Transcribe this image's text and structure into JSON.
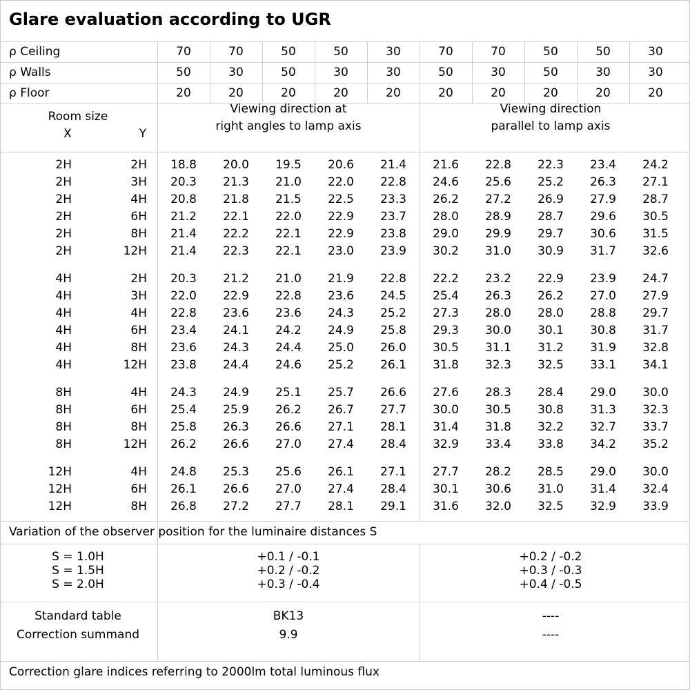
{
  "title": "Glare evaluation according to UGR",
  "reflectances": [
    {
      "label": "ρ Ceiling",
      "values": [
        "70",
        "70",
        "50",
        "50",
        "30",
        "70",
        "70",
        "50",
        "50",
        "30"
      ]
    },
    {
      "label": "ρ Walls",
      "values": [
        "50",
        "30",
        "50",
        "30",
        "30",
        "50",
        "30",
        "50",
        "30",
        "30"
      ]
    },
    {
      "label": "ρ Floor",
      "values": [
        "20",
        "20",
        "20",
        "20",
        "20",
        "20",
        "20",
        "20",
        "20",
        "20"
      ]
    }
  ],
  "room_size": {
    "label": "Room size",
    "x": "X",
    "y": "Y"
  },
  "direction_right": [
    "Viewing direction at",
    "right angles to lamp axis"
  ],
  "direction_parallel": [
    "Viewing direction",
    "parallel to lamp axis"
  ],
  "groups": [
    {
      "rows": [
        {
          "x": "2H",
          "y": "2H",
          "v": [
            "18.8",
            "20.0",
            "19.5",
            "20.6",
            "21.4",
            "21.6",
            "22.8",
            "22.3",
            "23.4",
            "24.2"
          ]
        },
        {
          "x": "2H",
          "y": "3H",
          "v": [
            "20.3",
            "21.3",
            "21.0",
            "22.0",
            "22.8",
            "24.6",
            "25.6",
            "25.2",
            "26.3",
            "27.1"
          ]
        },
        {
          "x": "2H",
          "y": "4H",
          "v": [
            "20.8",
            "21.8",
            "21.5",
            "22.5",
            "23.3",
            "26.2",
            "27.2",
            "26.9",
            "27.9",
            "28.7"
          ]
        },
        {
          "x": "2H",
          "y": "6H",
          "v": [
            "21.2",
            "22.1",
            "22.0",
            "22.9",
            "23.7",
            "28.0",
            "28.9",
            "28.7",
            "29.6",
            "30.5"
          ]
        },
        {
          "x": "2H",
          "y": "8H",
          "v": [
            "21.4",
            "22.2",
            "22.1",
            "22.9",
            "23.8",
            "29.0",
            "29.9",
            "29.7",
            "30.6",
            "31.5"
          ]
        },
        {
          "x": "2H",
          "y": "12H",
          "v": [
            "21.4",
            "22.3",
            "22.1",
            "23.0",
            "23.9",
            "30.2",
            "31.0",
            "30.9",
            "31.7",
            "32.6"
          ]
        }
      ]
    },
    {
      "rows": [
        {
          "x": "4H",
          "y": "2H",
          "v": [
            "20.3",
            "21.2",
            "21.0",
            "21.9",
            "22.8",
            "22.2",
            "23.2",
            "22.9",
            "23.9",
            "24.7"
          ]
        },
        {
          "x": "4H",
          "y": "3H",
          "v": [
            "22.0",
            "22.9",
            "22.8",
            "23.6",
            "24.5",
            "25.4",
            "26.3",
            "26.2",
            "27.0",
            "27.9"
          ]
        },
        {
          "x": "4H",
          "y": "4H",
          "v": [
            "22.8",
            "23.6",
            "23.6",
            "24.3",
            "25.2",
            "27.3",
            "28.0",
            "28.0",
            "28.8",
            "29.7"
          ]
        },
        {
          "x": "4H",
          "y": "6H",
          "v": [
            "23.4",
            "24.1",
            "24.2",
            "24.9",
            "25.8",
            "29.3",
            "30.0",
            "30.1",
            "30.8",
            "31.7"
          ]
        },
        {
          "x": "4H",
          "y": "8H",
          "v": [
            "23.6",
            "24.3",
            "24.4",
            "25.0",
            "26.0",
            "30.5",
            "31.1",
            "31.2",
            "31.9",
            "32.8"
          ]
        },
        {
          "x": "4H",
          "y": "12H",
          "v": [
            "23.8",
            "24.4",
            "24.6",
            "25.2",
            "26.1",
            "31.8",
            "32.3",
            "32.5",
            "33.1",
            "34.1"
          ]
        }
      ]
    },
    {
      "rows": [
        {
          "x": "8H",
          "y": "4H",
          "v": [
            "24.3",
            "24.9",
            "25.1",
            "25.7",
            "26.6",
            "27.6",
            "28.3",
            "28.4",
            "29.0",
            "30.0"
          ]
        },
        {
          "x": "8H",
          "y": "6H",
          "v": [
            "25.4",
            "25.9",
            "26.2",
            "26.7",
            "27.7",
            "30.0",
            "30.5",
            "30.8",
            "31.3",
            "32.3"
          ]
        },
        {
          "x": "8H",
          "y": "8H",
          "v": [
            "25.8",
            "26.3",
            "26.6",
            "27.1",
            "28.1",
            "31.4",
            "31.8",
            "32.2",
            "32.7",
            "33.7"
          ]
        },
        {
          "x": "8H",
          "y": "12H",
          "v": [
            "26.2",
            "26.6",
            "27.0",
            "27.4",
            "28.4",
            "32.9",
            "33.4",
            "33.8",
            "34.2",
            "35.2"
          ]
        }
      ]
    },
    {
      "rows": [
        {
          "x": "12H",
          "y": "4H",
          "v": [
            "24.8",
            "25.3",
            "25.6",
            "26.1",
            "27.1",
            "27.7",
            "28.2",
            "28.5",
            "29.0",
            "30.0"
          ]
        },
        {
          "x": "12H",
          "y": "6H",
          "v": [
            "26.1",
            "26.6",
            "27.0",
            "27.4",
            "28.4",
            "30.1",
            "30.6",
            "31.0",
            "31.4",
            "32.4"
          ]
        },
        {
          "x": "12H",
          "y": "8H",
          "v": [
            "26.8",
            "27.2",
            "27.7",
            "28.1",
            "29.1",
            "31.6",
            "32.0",
            "32.5",
            "32.9",
            "33.9"
          ]
        }
      ]
    }
  ],
  "variation_title": "Variation of the observer position for the luminaire distances S",
  "variation": [
    {
      "s": "S = 1.0H",
      "right": "+0.1 / -0.1",
      "parallel": "+0.2 / -0.2"
    },
    {
      "s": "S = 1.5H",
      "right": "+0.2 / -0.2",
      "parallel": "+0.3 / -0.3"
    },
    {
      "s": "S = 2.0H",
      "right": "+0.3 / -0.4",
      "parallel": "+0.4 / -0.5"
    }
  ],
  "standard_table": {
    "label": "Standard table",
    "right": "BK13",
    "parallel": "----"
  },
  "correction_summand": {
    "label": "Correction summand",
    "right": "9.9",
    "parallel": "----"
  },
  "footer": "Correction glare indices referring to 2000lm total luminous flux"
}
